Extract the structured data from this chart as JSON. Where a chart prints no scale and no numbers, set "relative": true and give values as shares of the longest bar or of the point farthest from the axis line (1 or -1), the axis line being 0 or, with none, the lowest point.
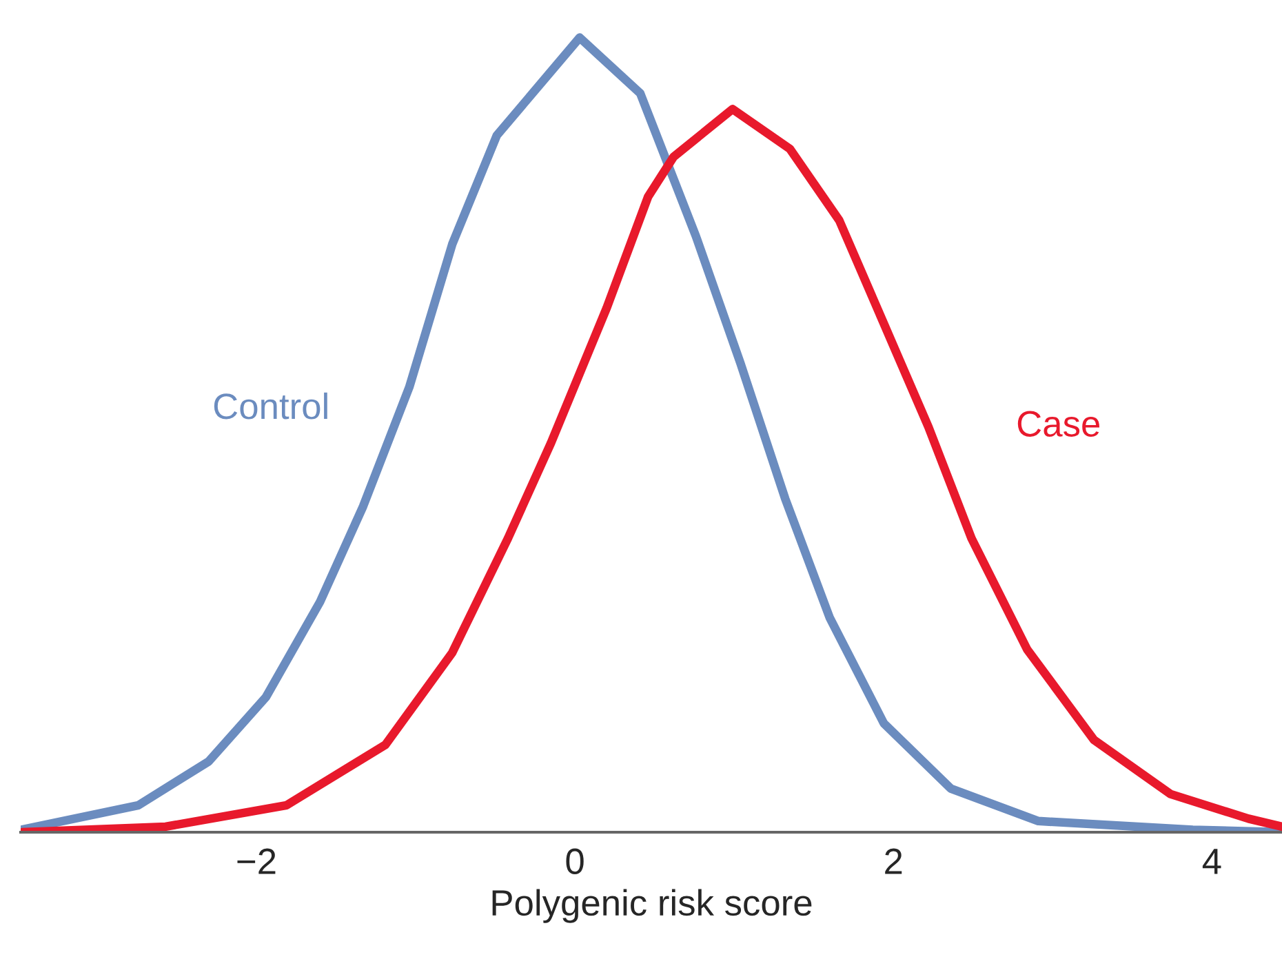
{
  "chart_data": {
    "type": "line",
    "relative": true,
    "xlabel": "Polygenic risk score",
    "xlim": [
      -3.48,
      4.44
    ],
    "xticks": [
      {
        "value": -2,
        "label": "−2"
      },
      0,
      2,
      4
    ],
    "tick_labels": "x",
    "series": [
      {
        "name": "Control",
        "color": "#6b8cbf",
        "x": [
          -3.48,
          -2.74,
          -2.3,
          -1.94,
          -1.6,
          -1.33,
          -1.04,
          -0.77,
          -0.49,
          0.03,
          0.41,
          0.76,
          1.04,
          1.32,
          1.6,
          1.94,
          2.36,
          2.91,
          3.88,
          4.44
        ],
        "values": [
          0.003,
          0.034,
          0.089,
          0.17,
          0.29,
          0.41,
          0.56,
          0.74,
          0.877,
          1,
          0.93,
          0.75,
          0.59,
          0.42,
          0.27,
          0.137,
          0.055,
          0.014,
          0.003,
          0
        ]
      },
      {
        "name": "Case",
        "color": "#e8192c",
        "x": [
          -3.47,
          -2.57,
          -1.81,
          -1.19,
          -0.77,
          -0.42,
          -0.15,
          0.2,
          0.46,
          0.62,
          0.99,
          1.35,
          1.66,
          1.94,
          2.22,
          2.49,
          2.84,
          3.26,
          3.74,
          4.23,
          4.44
        ],
        "values": [
          0,
          0.007,
          0.034,
          0.11,
          0.226,
          0.37,
          0.49,
          0.66,
          0.8,
          0.85,
          0.91,
          0.86,
          0.77,
          0.64,
          0.51,
          0.37,
          0.23,
          0.116,
          0.048,
          0.017,
          0.007
        ]
      }
    ]
  }
}
